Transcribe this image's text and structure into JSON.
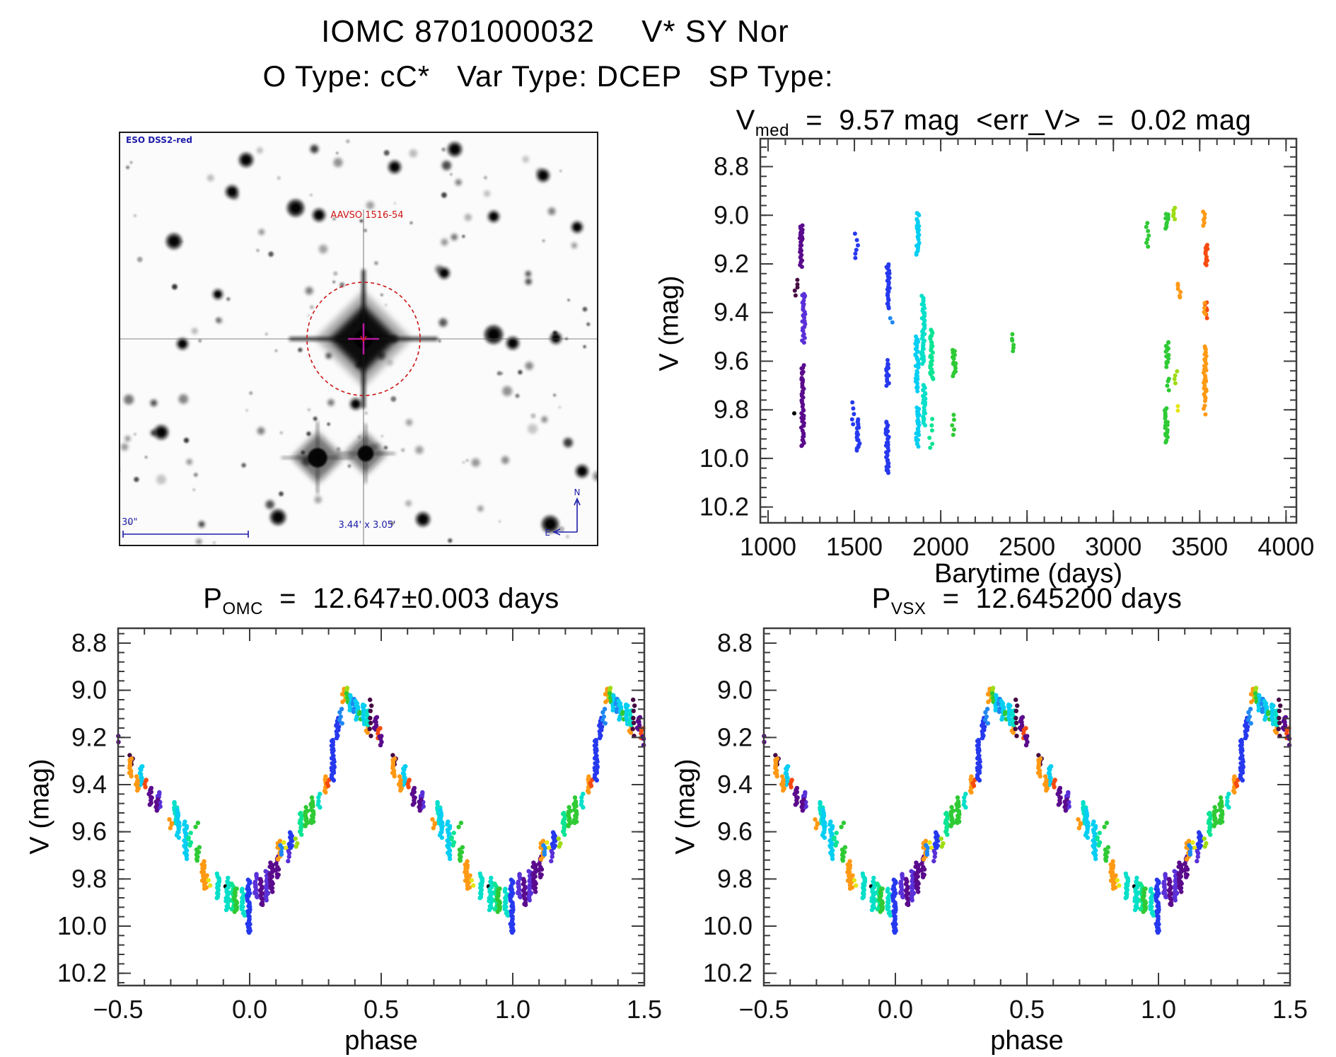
{
  "header": {
    "title": "IOMC 8701000032     V* SY Nor",
    "subtitle": "O Type: cC*   Var Type: DCEP   SP Type:"
  },
  "finder": {
    "survey_credit": "ESO DSS2-red",
    "target_label": "AAVSO 1516-54",
    "scale_bar_label": "30\"",
    "fov_label": "3.44' x 3.05'",
    "compass_north": "N",
    "compass_east": "E",
    "annotation_color": "#1c1caa",
    "target_color": "#cc1414"
  },
  "palette": {
    "black": "#000000",
    "darkpurple": "#460a43",
    "purple": "#5a0b8c",
    "violet": "#5a30d8",
    "blue": "#2639ee",
    "dodger": "#1f87f2",
    "cyan": "#06cef2",
    "turquoise": "#06dfc9",
    "spring": "#0be493",
    "green": "#2fca35",
    "yellowgreen": "#9edc12",
    "yellow": "#e6e512",
    "orange": "#ff9914",
    "redorange": "#f64b10"
  },
  "color_encoding_note": "point color encodes observation epoch (purple=early ... red=late)",
  "chart_data": [
    {
      "type": "scatter",
      "title": {
        "prefix": "V",
        "sub": "med",
        "rest": "  =  9.57 mag  <err_V>  =  0.02 mag"
      },
      "v_med_mag": 9.57,
      "err_v_mag": 0.02,
      "xlabel": "Barytime (days)",
      "ylabel": "V (mag)",
      "xlim": [
        955,
        4060
      ],
      "ylim": [
        8.685,
        10.265
      ],
      "y_axis_inverted_mag": true,
      "xticks": [
        1000,
        1500,
        2000,
        2500,
        3000,
        3500,
        4000
      ],
      "xtick_labels": [
        "1000",
        "1500",
        "2000",
        "2500",
        "3000",
        "3500",
        "4000"
      ],
      "yticks": [
        8.8,
        9.0,
        9.2,
        9.4,
        9.6,
        9.8,
        10.0,
        10.2
      ],
      "ytick_labels": [
        "8.8",
        "9.0",
        "9.2",
        "9.4",
        "9.6",
        "9.8",
        "10.0",
        "10.2"
      ],
      "xminor": 100,
      "yminor": 0.04,
      "xjitter": 9,
      "clusters_format": [
        "x_value",
        "mag_min",
        "mag_max",
        "color_key",
        "n_points(0=auto)"
      ],
      "clusters": [
        [
          1150,
          9.8,
          9.83,
          "black",
          1
        ],
        [
          1193,
          9.04,
          9.21,
          "purple",
          0
        ],
        [
          1162,
          9.27,
          9.33,
          "darkpurple",
          5
        ],
        [
          1206,
          9.32,
          9.52,
          "violet",
          0
        ],
        [
          1200,
          9.62,
          9.95,
          "purple",
          0
        ],
        [
          1512,
          9.08,
          9.18,
          "blue",
          6
        ],
        [
          1492,
          9.77,
          9.86,
          "blue",
          5
        ],
        [
          1522,
          9.84,
          9.97,
          "blue",
          0
        ],
        [
          1695,
          9.2,
          9.38,
          "blue",
          0
        ],
        [
          1713,
          9.42,
          9.44,
          "dodger",
          2
        ],
        [
          1693,
          9.6,
          9.7,
          "blue",
          0
        ],
        [
          1690,
          9.85,
          10.06,
          "blue",
          0
        ],
        [
          1868,
          8.99,
          9.16,
          "cyan",
          0
        ],
        [
          1862,
          9.5,
          9.72,
          "cyan",
          0
        ],
        [
          1866,
          9.79,
          9.95,
          "cyan",
          0
        ],
        [
          1898,
          9.33,
          9.61,
          "turquoise",
          0
        ],
        [
          1903,
          9.7,
          9.86,
          "turquoise",
          0
        ],
        [
          1948,
          9.47,
          9.67,
          "spring",
          0
        ],
        [
          1944,
          9.84,
          9.96,
          "spring",
          6
        ],
        [
          2078,
          9.55,
          9.66,
          "green",
          0
        ],
        [
          2074,
          9.82,
          9.9,
          "green",
          5
        ],
        [
          2420,
          9.49,
          9.56,
          "green",
          6
        ],
        [
          3198,
          9.03,
          9.13,
          "green",
          7
        ],
        [
          3310,
          8.99,
          9.05,
          "green",
          0
        ],
        [
          3352,
          8.97,
          9.02,
          "yellowgreen",
          5
        ],
        [
          3524,
          8.99,
          9.04,
          "orange",
          6
        ],
        [
          3537,
          9.12,
          9.21,
          "redorange",
          0
        ],
        [
          3380,
          9.28,
          9.34,
          "orange",
          6
        ],
        [
          3535,
          9.36,
          9.42,
          "redorange",
          7
        ],
        [
          3527,
          9.36,
          9.41,
          "orange",
          4
        ],
        [
          3312,
          9.52,
          9.62,
          "green",
          0
        ],
        [
          3360,
          9.64,
          9.69,
          "yellowgreen",
          4
        ],
        [
          3532,
          9.54,
          9.64,
          "orange",
          0
        ],
        [
          3316,
          9.67,
          9.72,
          "green",
          4
        ],
        [
          3529,
          9.65,
          9.75,
          "orange",
          0
        ],
        [
          3368,
          9.78,
          9.8,
          "yellow",
          2
        ],
        [
          3306,
          9.79,
          9.93,
          "green",
          0
        ],
        [
          3531,
          9.72,
          9.82,
          "orange",
          6
        ]
      ]
    },
    {
      "type": "scatter",
      "title": {
        "prefix": "P",
        "sub": "OMC",
        "rest": "  =  12.647±0.003 days"
      },
      "period_days": 12.647,
      "period_err_days": 0.003,
      "xlabel": "phase",
      "ylabel": "V (mag)",
      "xlim": [
        -0.5,
        1.5
      ],
      "ylim": [
        8.737,
        10.252
      ],
      "y_axis_inverted_mag": true,
      "xticks": [
        -0.5,
        0.0,
        0.5,
        1.0,
        1.5
      ],
      "xtick_labels": [
        "−0.5",
        "0.0",
        "0.5",
        "1.0",
        "1.5"
      ],
      "yticks": [
        8.8,
        9.0,
        9.2,
        9.4,
        9.6,
        9.8,
        10.0,
        10.2
      ],
      "ytick_labels": [
        "8.8",
        "9.0",
        "9.2",
        "9.4",
        "9.6",
        "9.8",
        "10.0",
        "10.2"
      ],
      "xminor": 0.1,
      "yminor": 0.04,
      "xjitter": 0.006,
      "duplicate_phase": true,
      "clusters_format": [
        "phase",
        "mag_min",
        "mag_max",
        "color_key",
        "n_points(0=auto)"
      ],
      "clusters": [
        [
          0.55,
          9.28,
          9.32,
          "darkpurple",
          0
        ],
        [
          0.548,
          9.29,
          9.36,
          "orange",
          0
        ],
        [
          0.588,
          9.32,
          9.4,
          "cyan",
          0
        ],
        [
          0.572,
          9.37,
          9.42,
          "orange",
          0
        ],
        [
          0.601,
          9.38,
          9.41,
          "redorange",
          4
        ],
        [
          0.623,
          9.41,
          9.48,
          "purple",
          0
        ],
        [
          0.655,
          9.43,
          9.5,
          "violet",
          0
        ],
        [
          0.648,
          9.46,
          9.51,
          "purple",
          5
        ],
        [
          0.718,
          9.48,
          9.56,
          "turquoise",
          0
        ],
        [
          0.7,
          9.55,
          9.58,
          "orange",
          4
        ],
        [
          0.728,
          9.51,
          9.62,
          "cyan",
          0
        ],
        [
          0.756,
          9.56,
          9.71,
          "cyan",
          0
        ],
        [
          0.772,
          9.61,
          9.66,
          "spring",
          5
        ],
        [
          0.8,
          9.56,
          9.58,
          "green",
          2
        ],
        [
          0.803,
          9.67,
          9.72,
          "green",
          0
        ],
        [
          0.823,
          9.73,
          9.81,
          "orange",
          0
        ],
        [
          0.833,
          9.79,
          9.84,
          "orange",
          0
        ],
        [
          0.845,
          9.81,
          9.83,
          "yellow",
          2
        ],
        [
          0.88,
          9.78,
          9.88,
          "turquoise",
          0
        ],
        [
          0.908,
          9.82,
          9.84,
          "black",
          1
        ],
        [
          0.916,
          9.8,
          9.93,
          "turquoise",
          0
        ],
        [
          0.936,
          9.82,
          9.93,
          "spring",
          0
        ],
        [
          0.948,
          9.84,
          9.94,
          "green",
          0
        ],
        [
          0.975,
          9.84,
          9.95,
          "turquoise",
          0
        ],
        [
          0.996,
          9.8,
          10.03,
          "blue",
          0
        ],
        [
          0.025,
          9.78,
          9.88,
          "violet",
          0
        ],
        [
          0.045,
          9.8,
          9.91,
          "purple",
          0
        ],
        [
          0.066,
          9.77,
          9.89,
          "violet",
          0
        ],
        [
          0.082,
          9.73,
          9.85,
          "purple",
          0
        ],
        [
          0.105,
          9.71,
          9.79,
          "purple",
          0
        ],
        [
          0.112,
          9.64,
          9.72,
          "orange",
          0
        ],
        [
          0.12,
          9.66,
          9.7,
          "dodger",
          4
        ],
        [
          0.135,
          9.65,
          9.67,
          "yellow",
          2
        ],
        [
          0.15,
          9.68,
          9.72,
          "violet",
          4
        ],
        [
          0.156,
          9.6,
          9.67,
          "blue",
          0
        ],
        [
          0.176,
          9.63,
          9.66,
          "yellowgreen",
          3
        ],
        [
          0.196,
          9.52,
          9.61,
          "spring",
          0
        ],
        [
          0.216,
          9.5,
          9.58,
          "green",
          0
        ],
        [
          0.238,
          9.46,
          9.56,
          "green",
          0
        ],
        [
          0.262,
          9.44,
          9.5,
          "turquoise",
          5
        ],
        [
          0.288,
          9.37,
          9.43,
          "orange",
          0
        ],
        [
          0.297,
          9.38,
          9.41,
          "redorange",
          3
        ],
        [
          0.316,
          9.21,
          9.38,
          "blue",
          0
        ],
        [
          0.334,
          9.12,
          9.2,
          "blue",
          0
        ],
        [
          0.346,
          9.08,
          9.14,
          "dodger",
          5
        ],
        [
          0.358,
          8.99,
          9.05,
          "orange",
          0
        ],
        [
          0.368,
          8.99,
          9.04,
          "yellowgreen",
          0
        ],
        [
          0.373,
          9.01,
          9.05,
          "green",
          4
        ],
        [
          0.386,
          9.02,
          9.08,
          "cyan",
          0
        ],
        [
          0.398,
          9.04,
          9.09,
          "dodger",
          0
        ],
        [
          0.408,
          9.05,
          9.12,
          "cyan",
          0
        ],
        [
          0.416,
          9.09,
          9.12,
          "green",
          3
        ],
        [
          0.433,
          9.06,
          9.14,
          "cyan",
          0
        ],
        [
          0.447,
          9.14,
          9.18,
          "orange",
          4
        ],
        [
          0.449,
          9.09,
          9.15,
          "turquoise",
          0
        ],
        [
          0.462,
          9.04,
          9.19,
          "darkpurple",
          7
        ],
        [
          0.479,
          9.11,
          9.17,
          "purple",
          0
        ],
        [
          0.492,
          9.16,
          9.2,
          "redorange",
          4
        ],
        [
          0.498,
          9.19,
          9.23,
          "purple",
          5
        ]
      ]
    },
    {
      "type": "scatter",
      "title": {
        "prefix": "P",
        "sub": "VSX",
        "rest": "  =  12.645200 days"
      },
      "period_days": 12.6452,
      "xlabel": "phase",
      "ylabel": "V (mag)",
      "xlim": [
        -0.5,
        1.5
      ],
      "ylim": [
        8.737,
        10.252
      ],
      "y_axis_inverted_mag": true,
      "xticks": [
        -0.5,
        0.0,
        0.5,
        1.0,
        1.5
      ],
      "xtick_labels": [
        "−0.5",
        "0.0",
        "0.5",
        "1.0",
        "1.5"
      ],
      "yticks": [
        8.8,
        9.0,
        9.2,
        9.4,
        9.6,
        9.8,
        10.0,
        10.2
      ],
      "ytick_labels": [
        "8.8",
        "9.0",
        "9.2",
        "9.4",
        "9.6",
        "9.8",
        "10.0",
        "10.2"
      ],
      "xminor": 0.1,
      "yminor": 0.04,
      "xjitter": 0.006,
      "duplicate_phase": true,
      "clusters": "same_as_omc"
    }
  ]
}
